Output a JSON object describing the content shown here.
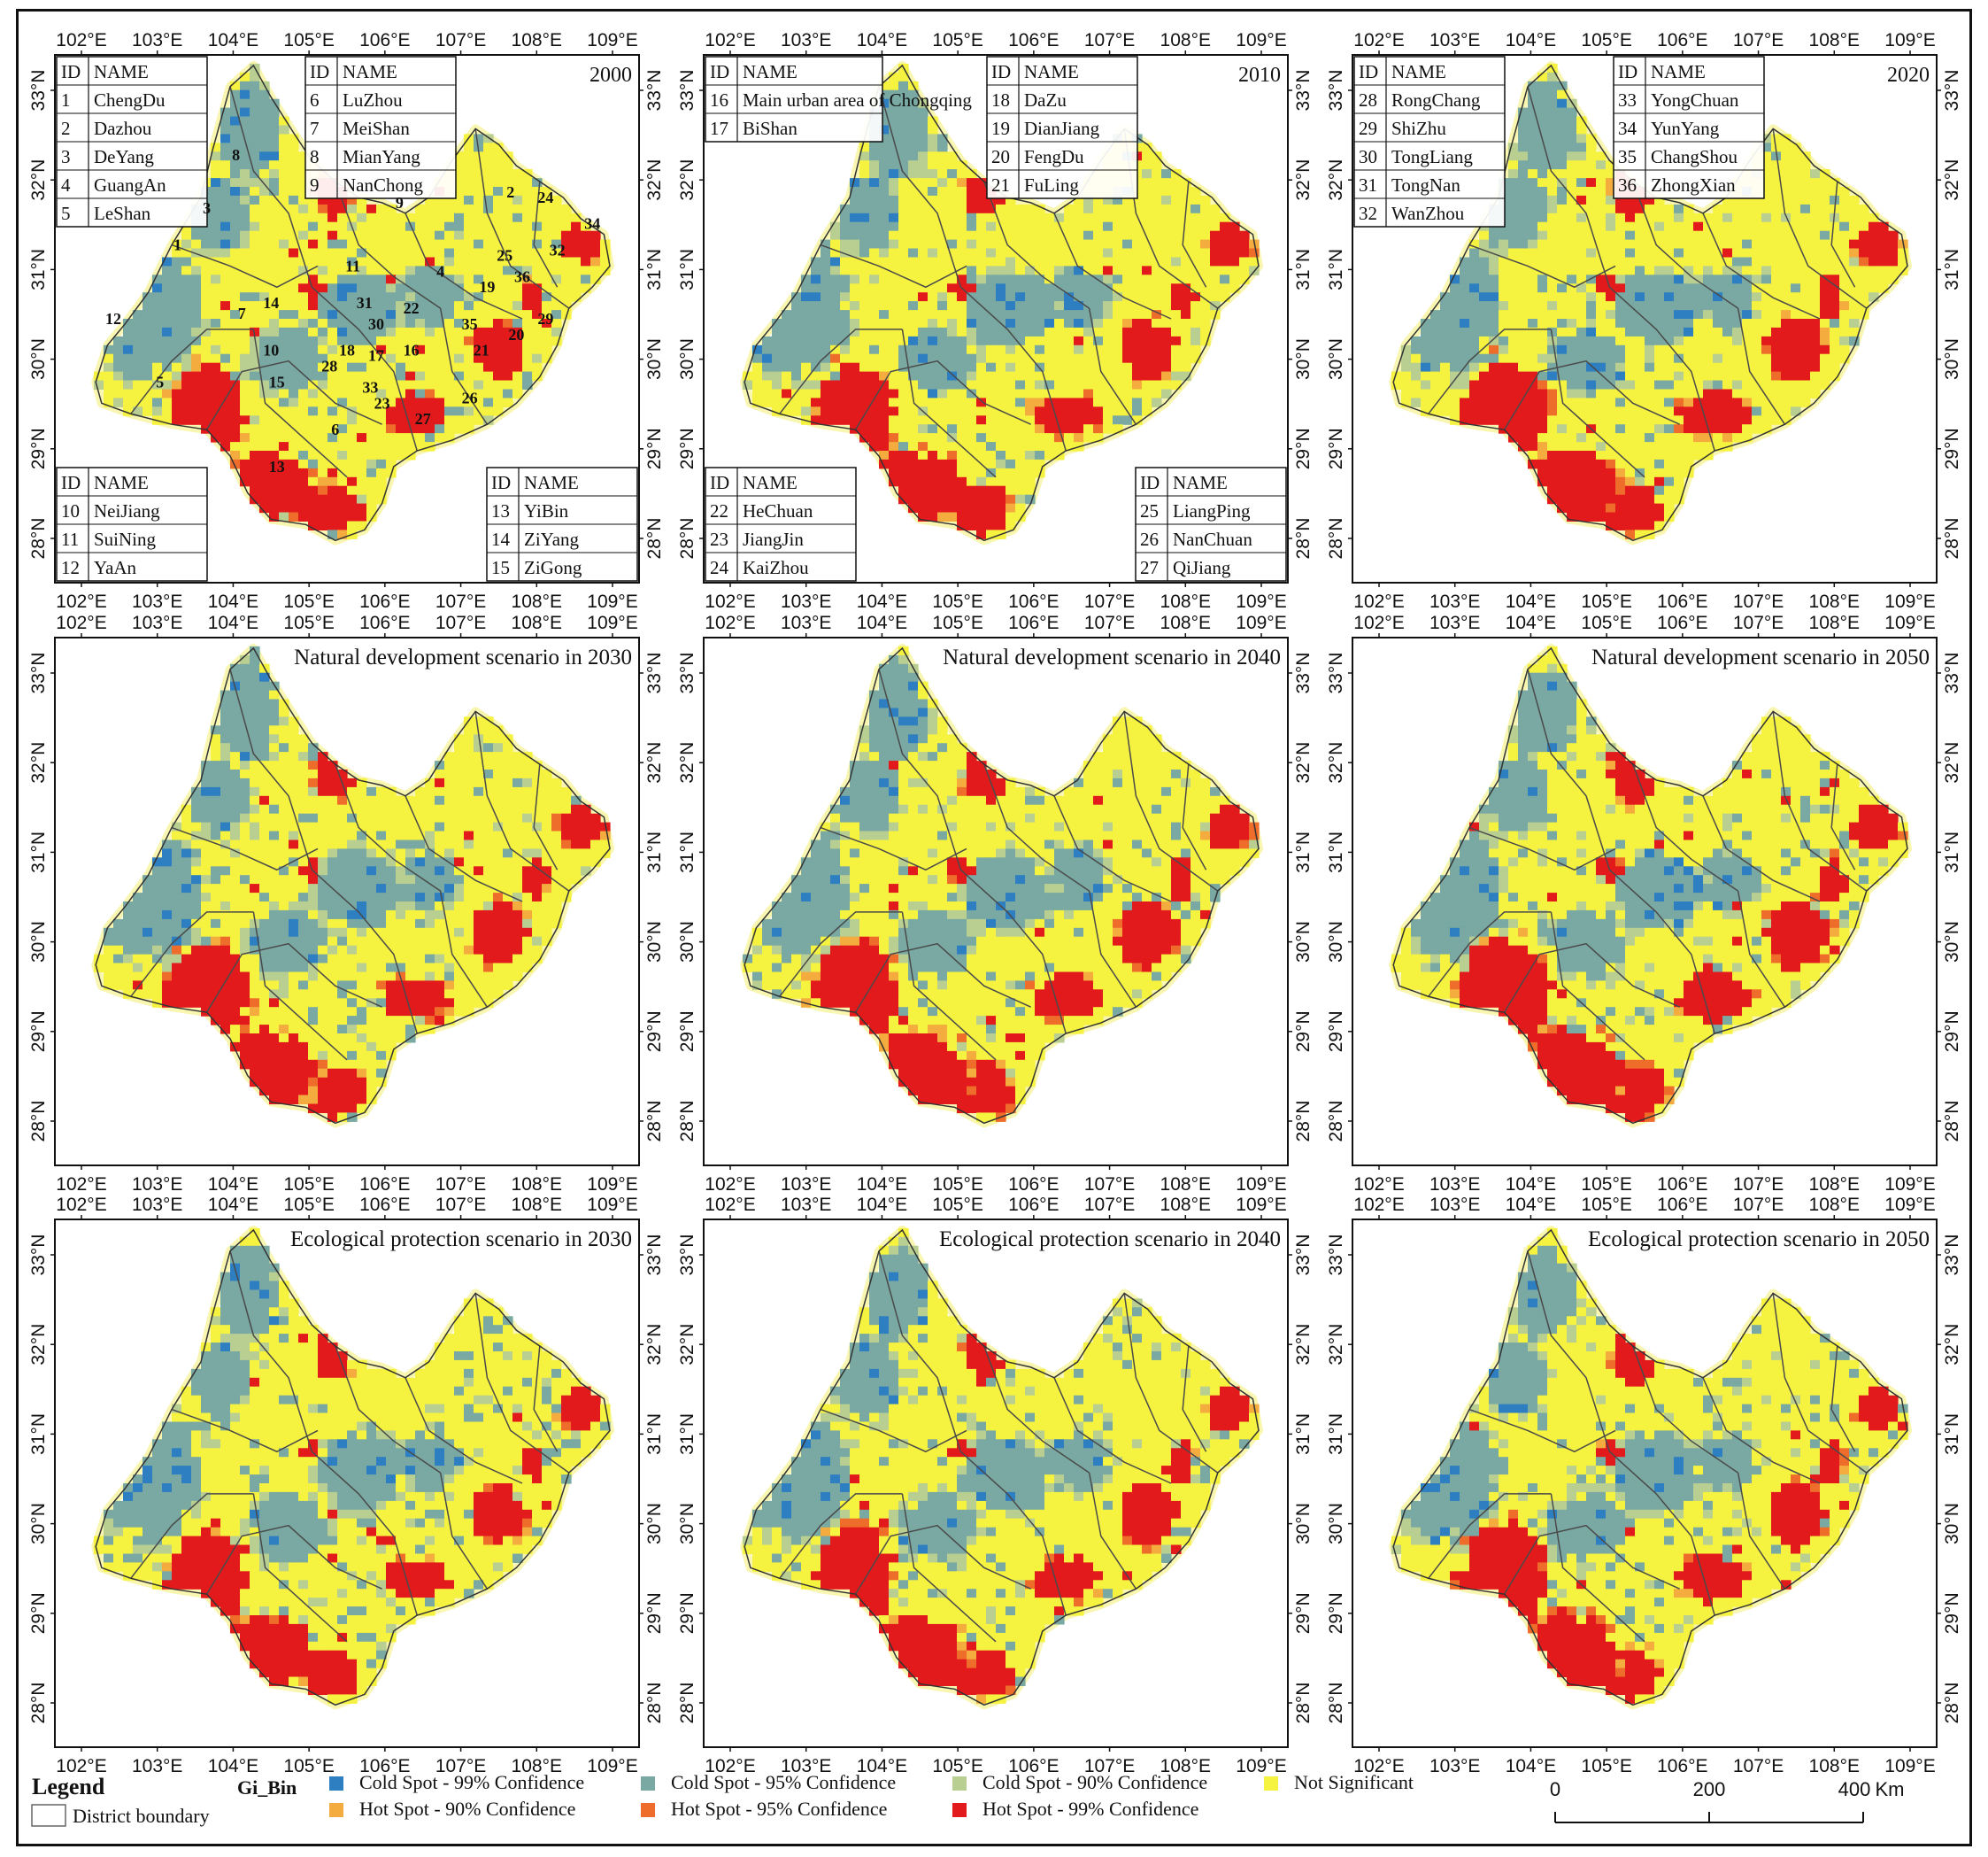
{
  "lon_labels": [
    "102°E",
    "103°E",
    "104°E",
    "105°E",
    "106°E",
    "107°E",
    "108°E",
    "109°E"
  ],
  "lat_labels": [
    "33°N",
    "32°N",
    "31°N",
    "30°N",
    "29°N",
    "28°N"
  ],
  "panels": [
    {
      "title": "2000",
      "title_style": "year"
    },
    {
      "title": "2010",
      "title_style": "year"
    },
    {
      "title": "2020",
      "title_style": "year"
    },
    {
      "title": "Natural development scenario in 2030",
      "title_style": "scenario"
    },
    {
      "title": "Natural development scenario in 2040",
      "title_style": "scenario"
    },
    {
      "title": "Natural development scenario in 2050",
      "title_style": "scenario"
    },
    {
      "title": "Ecological protection scenario in 2030",
      "title_style": "scenario"
    },
    {
      "title": "Ecological protection scenario in 2040",
      "title_style": "scenario"
    },
    {
      "title": "Ecological protection scenario in 2050",
      "title_style": "scenario"
    }
  ],
  "id_tables": [
    {
      "panel": 0,
      "corner": "top-left",
      "header": [
        "ID",
        "NAME"
      ],
      "rows": [
        [
          "1",
          "ChengDu"
        ],
        [
          "2",
          "Dazhou"
        ],
        [
          "3",
          "DeYang"
        ],
        [
          "4",
          "GuangAn"
        ],
        [
          "5",
          "LeShan"
        ]
      ]
    },
    {
      "panel": 0,
      "corner": "top-mid",
      "header": [
        "ID",
        "NAME"
      ],
      "rows": [
        [
          "6",
          "LuZhou"
        ],
        [
          "7",
          "MeiShan"
        ],
        [
          "8",
          "MianYang"
        ],
        [
          "9",
          "NanChong"
        ]
      ]
    },
    {
      "panel": 0,
      "corner": "bottom-left",
      "header": [
        "ID",
        "NAME"
      ],
      "rows": [
        [
          "10",
          "NeiJiang"
        ],
        [
          "11",
          "SuiNing"
        ],
        [
          "12",
          "YaAn"
        ]
      ]
    },
    {
      "panel": 0,
      "corner": "bottom-right",
      "header": [
        "ID",
        "NAME"
      ],
      "rows": [
        [
          "13",
          "YiBin"
        ],
        [
          "14",
          "ZiYang"
        ],
        [
          "15",
          "ZiGong"
        ]
      ]
    },
    {
      "panel": 1,
      "corner": "top-left",
      "header": [
        "ID",
        "NAME"
      ],
      "rows": [
        [
          "16",
          "Main urban area of Chongqing"
        ],
        [
          "17",
          "BiShan"
        ]
      ]
    },
    {
      "panel": 1,
      "corner": "top-mid",
      "header": [
        "ID",
        "NAME"
      ],
      "rows": [
        [
          "18",
          "DaZu"
        ],
        [
          "19",
          "DianJiang"
        ],
        [
          "20",
          "FengDu"
        ],
        [
          "21",
          "FuLing"
        ]
      ]
    },
    {
      "panel": 1,
      "corner": "bottom-left",
      "header": [
        "ID",
        "NAME"
      ],
      "rows": [
        [
          "22",
          "HeChuan"
        ],
        [
          "23",
          "JiangJin"
        ],
        [
          "24",
          "KaiZhou"
        ]
      ]
    },
    {
      "panel": 1,
      "corner": "bottom-right",
      "header": [
        "ID",
        "NAME"
      ],
      "rows": [
        [
          "25",
          "LiangPing"
        ],
        [
          "26",
          "NanChuan"
        ],
        [
          "27",
          "QiJiang"
        ]
      ]
    },
    {
      "panel": 2,
      "corner": "top-left",
      "header": [
        "ID",
        "NAME"
      ],
      "rows": [
        [
          "28",
          "RongChang"
        ],
        [
          "29",
          "ShiZhu"
        ],
        [
          "30",
          "TongLiang"
        ],
        [
          "31",
          "TongNan"
        ],
        [
          "32",
          "WanZhou"
        ]
      ]
    },
    {
      "panel": 2,
      "corner": "top-mid",
      "header": [
        "ID",
        "NAME"
      ],
      "rows": [
        [
          "33",
          "YongChuan"
        ],
        [
          "34",
          "YunYang"
        ],
        [
          "35",
          "ChangShou"
        ],
        [
          "36",
          "ZhongXian"
        ]
      ]
    }
  ],
  "map_id_labels": [
    "1",
    "2",
    "3",
    "4",
    "5",
    "6",
    "7",
    "8",
    "9",
    "10",
    "11",
    "12",
    "13",
    "14",
    "15",
    "16",
    "17",
    "18",
    "19",
    "20",
    "21",
    "22",
    "23",
    "24",
    "25",
    "26",
    "27",
    "28",
    "29",
    "30",
    "31",
    "32",
    "33",
    "34",
    "35",
    "36"
  ],
  "legend": {
    "title": "Legend",
    "boundary_label": "District boundary",
    "gi_label": "Gi_Bin",
    "items": [
      {
        "label": "Cold Spot - 99% Confidence",
        "color": "#2e7fc1"
      },
      {
        "label": "Cold Spot - 95% Confidence",
        "color": "#79a9a2"
      },
      {
        "label": "Cold Spot - 90% Confidence",
        "color": "#b9cf92"
      },
      {
        "label": "Not Significant",
        "color": "#f5f240"
      },
      {
        "label": "Hot Spot - 90% Confidence",
        "color": "#f4ac3f"
      },
      {
        "label": "Hot Spot - 95% Confidence",
        "color": "#ef6d2a"
      },
      {
        "label": "Hot Spot - 99% Confidence",
        "color": "#e31a1c"
      }
    ]
  },
  "scalebar": {
    "ticks": [
      "0",
      "200",
      "400"
    ],
    "unit": "Km"
  },
  "colors": {
    "frame": "#111111",
    "boundary": "#4a4a4a",
    "halo": "#f8f6b0"
  }
}
